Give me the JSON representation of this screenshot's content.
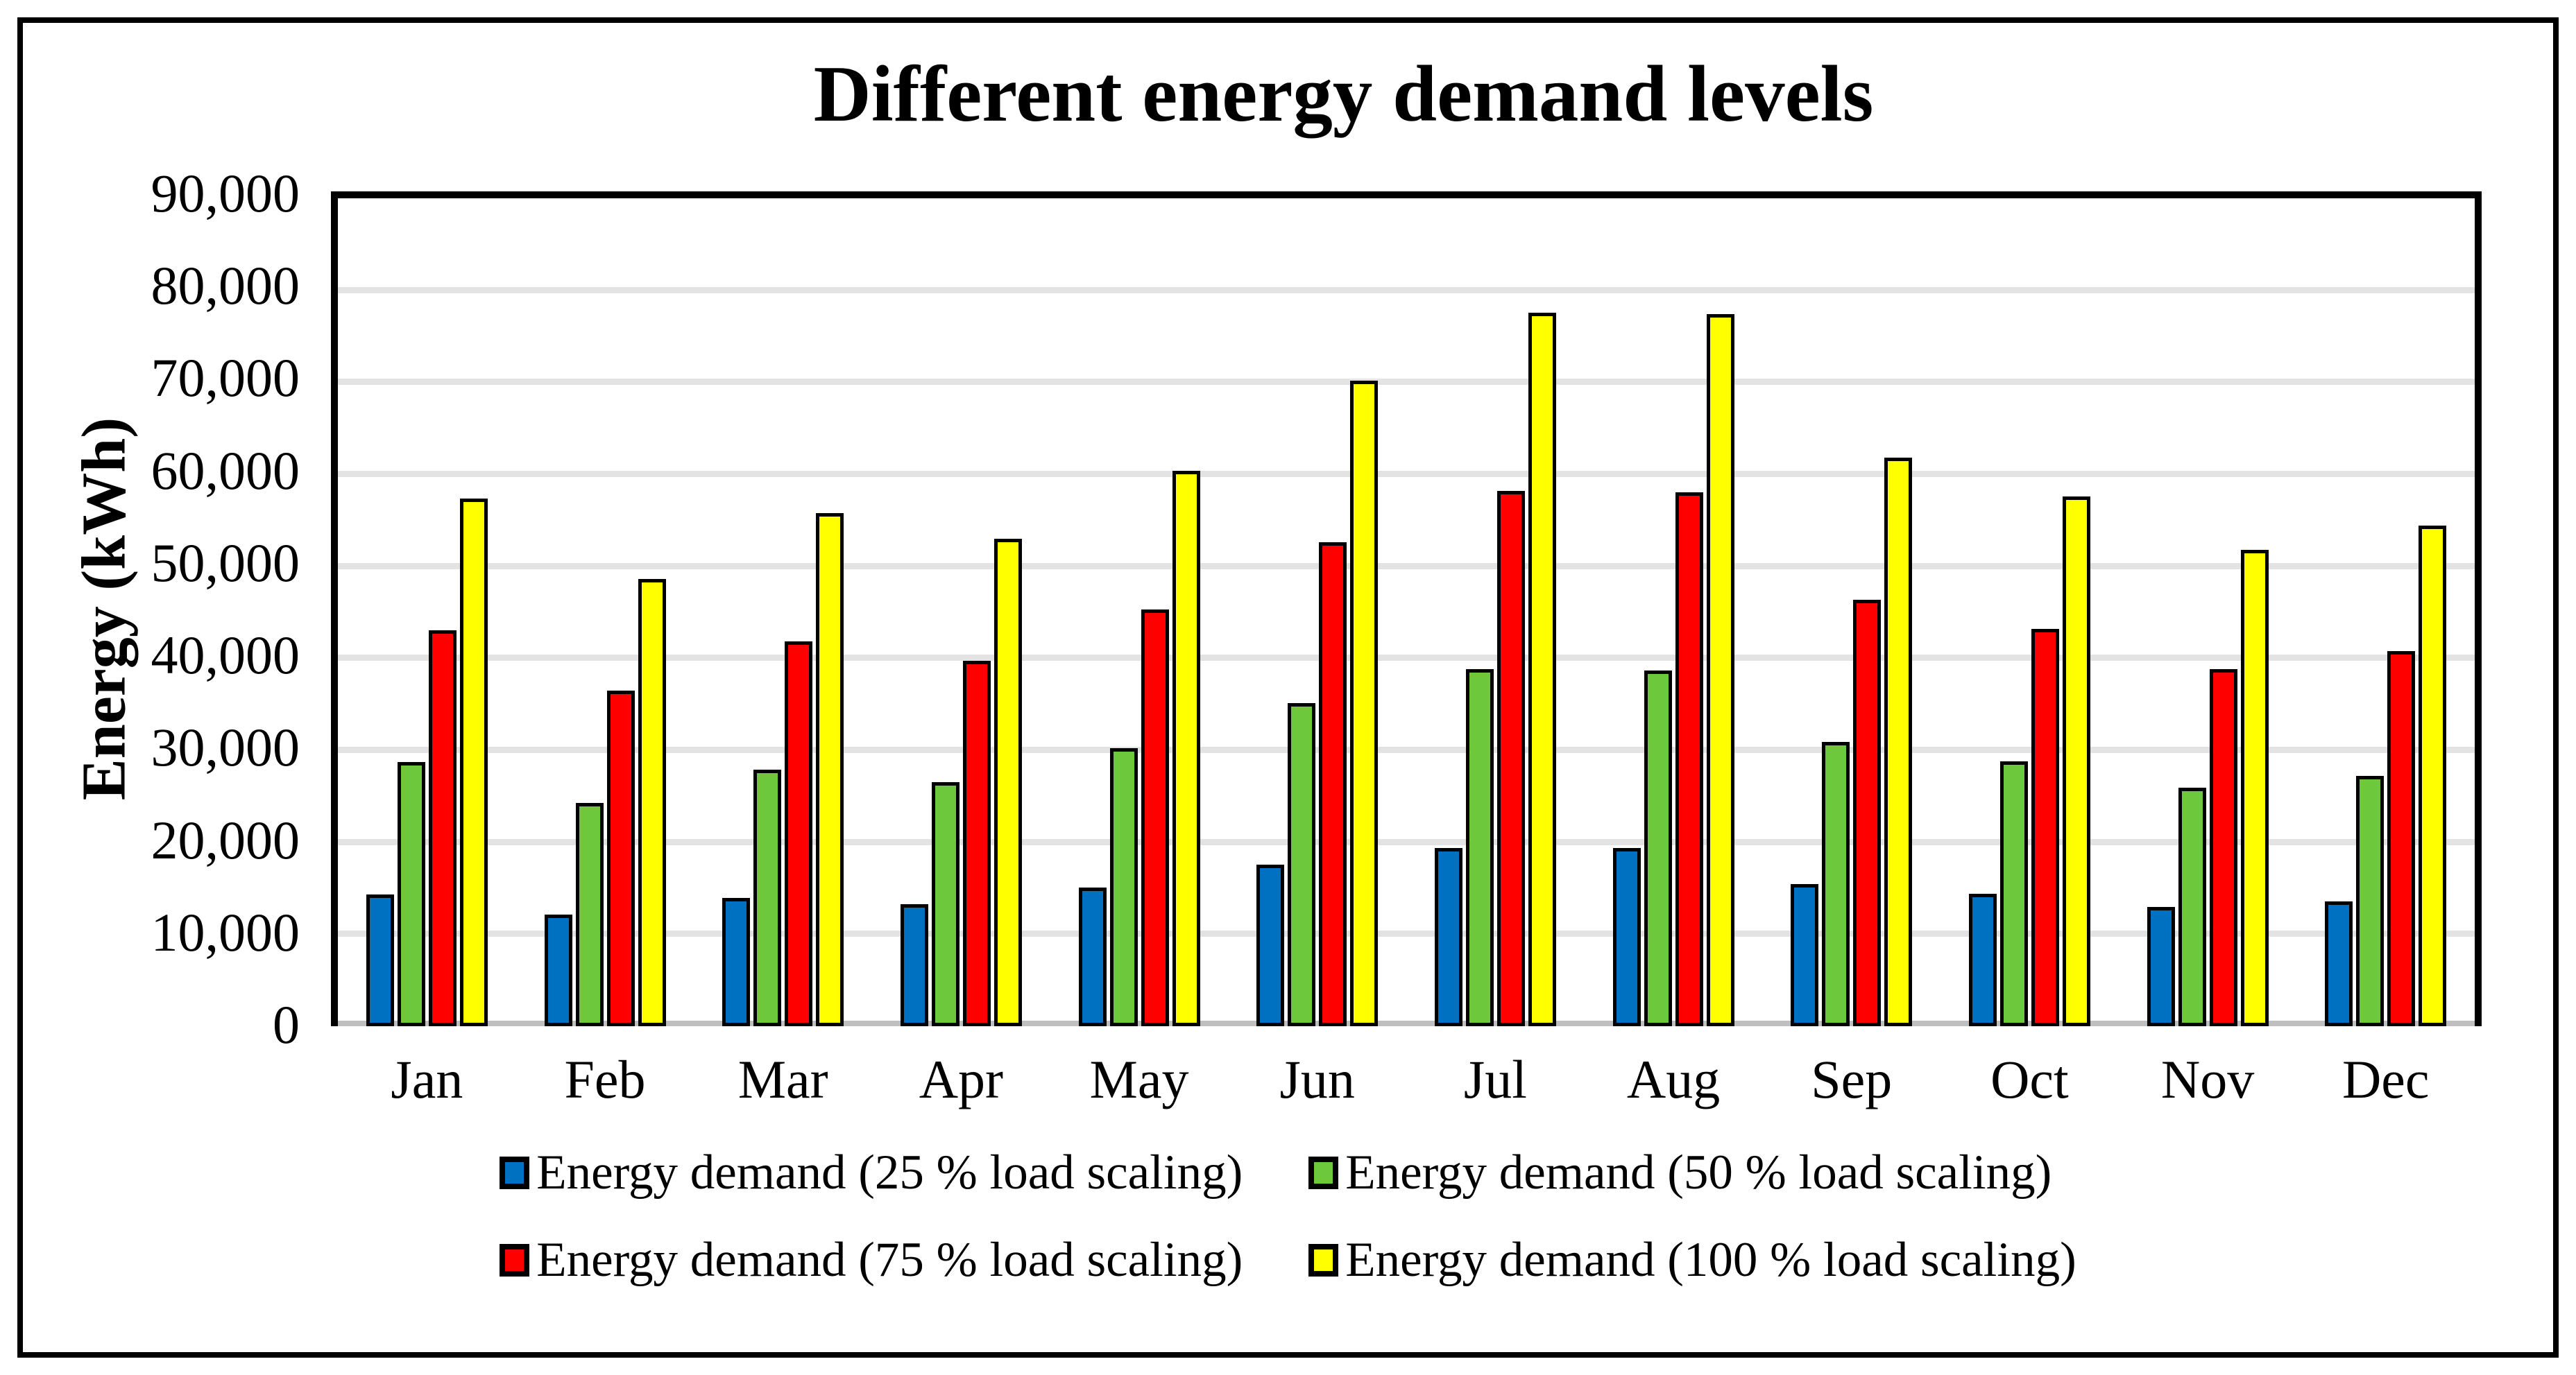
{
  "figure": {
    "title": "Different energy demand levels"
  },
  "y_axis": {
    "label": "Energy (kWh)",
    "min": 0,
    "max": 90000,
    "tick_step": 10000,
    "tick_labels": [
      "90,000",
      "80,000",
      "70,000",
      "60,000",
      "50,000",
      "40,000",
      "30,000",
      "20,000",
      "10,000",
      "0"
    ]
  },
  "x_axis": {
    "categories": [
      "Jan",
      "Feb",
      "Mar",
      "Apr",
      "May",
      "Jun",
      "Jul",
      "Aug",
      "Sep",
      "Oct",
      "Nov",
      "Dec"
    ]
  },
  "legend": {
    "items": [
      {
        "label": "Energy demand (25 % load scaling)",
        "color": "#0070C0"
      },
      {
        "label": "Energy demand (50 % load scaling)",
        "color": "#6EC83C"
      },
      {
        "label": "Energy demand (75 % load scaling)",
        "color": "#FF0000"
      },
      {
        "label": "Energy demand (100 % load scaling)",
        "color": "#FFFF00"
      }
    ]
  },
  "colors": {
    "plot_border": "#000000",
    "gridline": "#E3E3E3",
    "axis_line": "#BFBFBF",
    "bar_outline": "#000000",
    "text": "#000000",
    "background": "#FFFFFF"
  },
  "chart_data": {
    "type": "bar",
    "title": "Different energy demand levels",
    "xlabel": "",
    "ylabel": "Energy (kWh)",
    "ylim": [
      0,
      90000
    ],
    "grid": "horizontal",
    "legend_position": "bottom",
    "categories": [
      "Jan",
      "Feb",
      "Mar",
      "Apr",
      "May",
      "Jun",
      "Jul",
      "Aug",
      "Sep",
      "Oct",
      "Nov",
      "Dec"
    ],
    "series": [
      {
        "name": "Energy demand (25 % load scaling)",
        "color": "#0070C0",
        "values": [
          14350,
          12150,
          13950,
          13250,
          15100,
          17550,
          19400,
          19350,
          15450,
          14400,
          12950,
          13600
        ]
      },
      {
        "name": "Energy demand (50 % load scaling)",
        "color": "#6EC83C",
        "values": [
          28700,
          24300,
          27900,
          26500,
          30200,
          35100,
          38800,
          38700,
          30900,
          28800,
          25900,
          27200
        ]
      },
      {
        "name": "Energy demand (75 % load scaling)",
        "color": "#FF0000",
        "values": [
          43050,
          36450,
          41850,
          39750,
          45300,
          52650,
          58200,
          58050,
          46350,
          43200,
          38850,
          40800
        ]
      },
      {
        "name": "Energy demand (100 % load scaling)",
        "color": "#FFFF00",
        "values": [
          57400,
          48600,
          55800,
          53000,
          60400,
          70200,
          77600,
          77400,
          61800,
          57600,
          51800,
          54400
        ]
      }
    ]
  }
}
